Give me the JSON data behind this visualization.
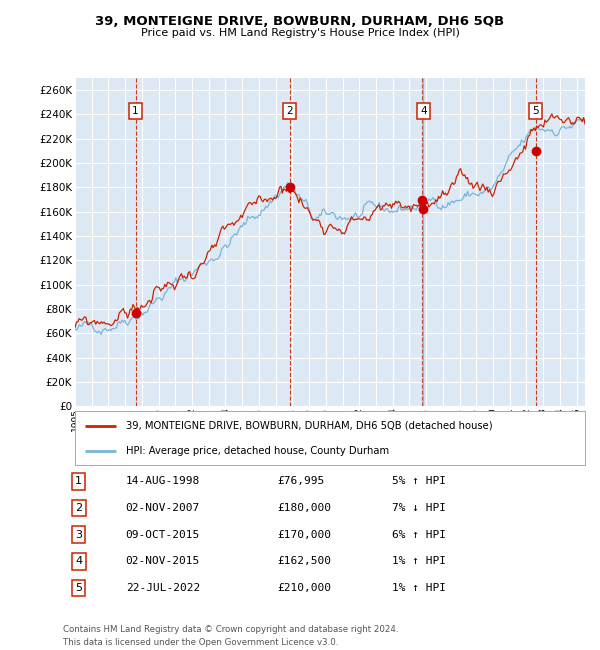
{
  "title": "39, MONTEIGNE DRIVE, BOWBURN, DURHAM, DH6 5QB",
  "subtitle": "Price paid vs. HM Land Registry's House Price Index (HPI)",
  "plot_bg_color": "#dce9f5",
  "grid_color": "#c8d8ea",
  "hpi_line_color": "#7ab4d8",
  "price_line_color": "#cc2200",
  "marker_color": "#cc0000",
  "vline_color_red": "#cc2200",
  "vline_color_blue": "#7ab4d8",
  "ylim": [
    0,
    270000
  ],
  "yticks": [
    0,
    20000,
    40000,
    60000,
    80000,
    100000,
    120000,
    140000,
    160000,
    180000,
    200000,
    220000,
    240000,
    260000
  ],
  "purchases": [
    {
      "num": 1,
      "date": "14-AUG-1998",
      "year": 1998.62,
      "price": 76995,
      "pct": "5%",
      "dir": "↑"
    },
    {
      "num": 2,
      "date": "02-NOV-2007",
      "year": 2007.83,
      "price": 180000,
      "pct": "7%",
      "dir": "↓"
    },
    {
      "num": 3,
      "date": "09-OCT-2015",
      "year": 2015.77,
      "price": 170000,
      "pct": "6%",
      "dir": "↑"
    },
    {
      "num": 4,
      "date": "02-NOV-2015",
      "year": 2015.84,
      "price": 162500,
      "pct": "1%",
      "dir": "↑"
    },
    {
      "num": 5,
      "date": "22-JUL-2022",
      "year": 2022.55,
      "price": 210000,
      "pct": "1%",
      "dir": "↑"
    }
  ],
  "legend_label_red": "39, MONTEIGNE DRIVE, BOWBURN, DURHAM, DH6 5QB (detached house)",
  "legend_label_blue": "HPI: Average price, detached house, County Durham",
  "footer": "Contains HM Land Registry data © Crown copyright and database right 2024.\nThis data is licensed under the Open Government Licence v3.0.",
  "xmin": 1995,
  "xmax": 2025.5,
  "table_data": [
    [
      "1",
      "14-AUG-1998",
      "£76,995",
      "5% ↑ HPI"
    ],
    [
      "2",
      "02-NOV-2007",
      "£180,000",
      "7% ↓ HPI"
    ],
    [
      "3",
      "09-OCT-2015",
      "£170,000",
      "6% ↑ HPI"
    ],
    [
      "4",
      "02-NOV-2015",
      "£162,500",
      "1% ↑ HPI"
    ],
    [
      "5",
      "22-JUL-2022",
      "£210,000",
      "1% ↑ HPI"
    ]
  ]
}
